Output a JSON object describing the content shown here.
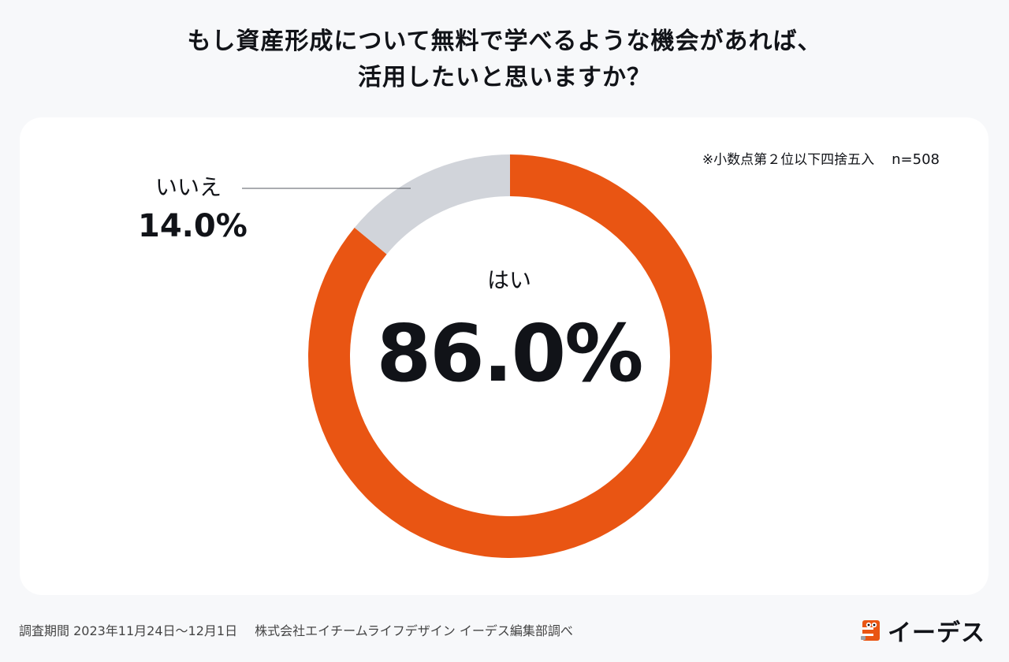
{
  "title": {
    "line1": "もし資産形成について無料で学べるような機会があれば、",
    "line2": "活用したいと思いますか？"
  },
  "note": {
    "rounding": "※小数点第２位以下四捨五入",
    "n": "n=508"
  },
  "colors": {
    "yes": "#E95513",
    "no": "#D1D4DA",
    "background": "#F7F8FA",
    "card": "#FFFFFF"
  },
  "chart_data": {
    "type": "pie",
    "categories": [
      "はい",
      "いいえ"
    ],
    "values": [
      86.0,
      14.0
    ],
    "unit": "%",
    "labels": {
      "yes_name": "はい",
      "yes_value": "86.0%",
      "no_name": "いいえ",
      "no_value": "14.0%"
    }
  },
  "footer": {
    "period": "調査期間 2023年11月24日〜12月1日",
    "source": "株式会社エイチームライフデザイン イーデス編集部調べ"
  },
  "logo": {
    "text": "イーデス",
    "icon": "owl-logo-icon"
  }
}
